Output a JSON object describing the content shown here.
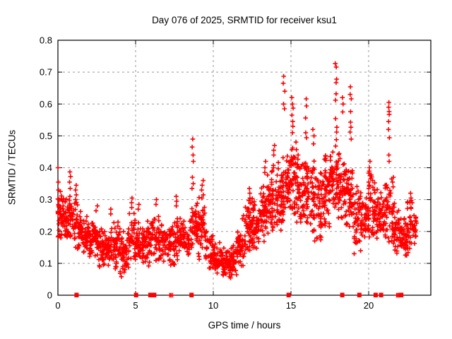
{
  "title": "Day 076 of 2025, SRMTID for receiver ksu1",
  "chart_data": {
    "type": "scatter",
    "title": "Day 076 of 2025, SRMTID for receiver ksu1",
    "xlabel": "GPS time / hours",
    "ylabel": "SRMTID / TECUs",
    "xlim": [
      0,
      24
    ],
    "ylim": [
      0,
      0.8
    ],
    "xticks": [
      {
        "v": 0,
        "label": "0"
      },
      {
        "v": 5,
        "label": "5"
      },
      {
        "v": 10,
        "label": "10"
      },
      {
        "v": 15,
        "label": "15"
      },
      {
        "v": 20,
        "label": "20"
      }
    ],
    "yticks": [
      {
        "v": 0.0,
        "label": "0"
      },
      {
        "v": 0.1,
        "label": "0.1"
      },
      {
        "v": 0.2,
        "label": "0.2"
      },
      {
        "v": 0.3,
        "label": "0.3"
      },
      {
        "v": 0.4,
        "label": "0.4"
      },
      {
        "v": 0.5,
        "label": "0.5"
      },
      {
        "v": 0.6,
        "label": "0.6"
      },
      {
        "v": 0.7,
        "label": "0.7"
      },
      {
        "v": 0.8,
        "label": "0.8"
      }
    ],
    "grid": true,
    "legend": "none",
    "marker": "plus",
    "marker_color": "#ff0000",
    "grid_color": "#999999",
    "axis_color": "#000000",
    "seed": 76,
    "band_envelope_comment": "dense scatter band per half-hour bin: [startHour, endHour, minTECU, maxTECU, pointCount]",
    "bands": [
      [
        0.0,
        0.5,
        0.17,
        0.33,
        55
      ],
      [
        0.5,
        1.0,
        0.17,
        0.31,
        50
      ],
      [
        1.0,
        1.5,
        0.13,
        0.3,
        48
      ],
      [
        1.5,
        2.0,
        0.12,
        0.26,
        46
      ],
      [
        2.0,
        2.5,
        0.1,
        0.24,
        46
      ],
      [
        2.5,
        3.0,
        0.07,
        0.22,
        46
      ],
      [
        3.0,
        3.5,
        0.08,
        0.22,
        46
      ],
      [
        3.5,
        4.0,
        0.07,
        0.24,
        46
      ],
      [
        4.0,
        4.5,
        0.05,
        0.22,
        46
      ],
      [
        4.5,
        5.0,
        0.08,
        0.26,
        46
      ],
      [
        5.0,
        5.5,
        0.06,
        0.24,
        44
      ],
      [
        5.5,
        6.0,
        0.08,
        0.24,
        42
      ],
      [
        6.0,
        6.5,
        0.09,
        0.26,
        42
      ],
      [
        6.5,
        7.0,
        0.1,
        0.25,
        42
      ],
      [
        7.0,
        7.5,
        0.08,
        0.24,
        44
      ],
      [
        7.5,
        8.0,
        0.1,
        0.26,
        42
      ],
      [
        8.0,
        8.5,
        0.1,
        0.24,
        42
      ],
      [
        8.5,
        9.0,
        0.12,
        0.3,
        46
      ],
      [
        9.0,
        9.5,
        0.1,
        0.32,
        46
      ],
      [
        9.5,
        10.0,
        0.08,
        0.22,
        42
      ],
      [
        10.0,
        10.5,
        0.05,
        0.18,
        46
      ],
      [
        10.5,
        11.0,
        0.05,
        0.16,
        46
      ],
      [
        11.0,
        11.5,
        0.04,
        0.17,
        46
      ],
      [
        11.5,
        12.0,
        0.08,
        0.22,
        46
      ],
      [
        12.0,
        12.5,
        0.12,
        0.3,
        50
      ],
      [
        12.5,
        13.0,
        0.13,
        0.32,
        50
      ],
      [
        13.0,
        13.5,
        0.15,
        0.37,
        50
      ],
      [
        13.5,
        14.0,
        0.18,
        0.42,
        50
      ],
      [
        14.0,
        14.5,
        0.18,
        0.42,
        50
      ],
      [
        14.5,
        15.0,
        0.22,
        0.46,
        54
      ],
      [
        15.0,
        15.5,
        0.22,
        0.5,
        54
      ],
      [
        15.5,
        16.0,
        0.2,
        0.45,
        50
      ],
      [
        16.0,
        16.5,
        0.18,
        0.45,
        50
      ],
      [
        16.5,
        17.0,
        0.15,
        0.42,
        50
      ],
      [
        17.0,
        17.5,
        0.2,
        0.45,
        50
      ],
      [
        17.5,
        18.0,
        0.25,
        0.48,
        50
      ],
      [
        18.0,
        18.5,
        0.22,
        0.45,
        50
      ],
      [
        18.5,
        19.0,
        0.2,
        0.42,
        50
      ],
      [
        19.0,
        19.5,
        0.12,
        0.35,
        46
      ],
      [
        19.5,
        20.0,
        0.15,
        0.32,
        44
      ],
      [
        20.0,
        20.5,
        0.17,
        0.4,
        44
      ],
      [
        20.5,
        21.0,
        0.15,
        0.35,
        44
      ],
      [
        21.0,
        21.5,
        0.15,
        0.38,
        40
      ],
      [
        21.5,
        22.0,
        0.12,
        0.3,
        46
      ],
      [
        22.0,
        22.5,
        0.12,
        0.25,
        56
      ],
      [
        22.5,
        23.1,
        0.13,
        0.32,
        46
      ]
    ],
    "spike_columns_comment": "distinct high-value marker columns: x hour, list of TECU values",
    "spikes": [
      {
        "x": 0.02,
        "ys": [
          0.4,
          0.355,
          0.33,
          0.3
        ]
      },
      {
        "x": 0.8,
        "ys": [
          0.387,
          0.372,
          0.355,
          0.335,
          0.31
        ]
      },
      {
        "x": 1.15,
        "ys": [
          0.345,
          0.33,
          0.315,
          0.3
        ]
      },
      {
        "x": 2.5,
        "ys": [
          0.28,
          0.265
        ]
      },
      {
        "x": 3.35,
        "ys": [
          0.27,
          0.255
        ]
      },
      {
        "x": 4.8,
        "ys": [
          0.305,
          0.29,
          0.275
        ]
      },
      {
        "x": 5.2,
        "ys": [
          0.285,
          0.27
        ]
      },
      {
        "x": 6.3,
        "ys": [
          0.3,
          0.285
        ]
      },
      {
        "x": 7.6,
        "ys": [
          0.31,
          0.295,
          0.28
        ]
      },
      {
        "x": 8.68,
        "ys": [
          0.49,
          0.465,
          0.44,
          0.42,
          0.37,
          0.35,
          0.335
        ]
      },
      {
        "x": 9.3,
        "ys": [
          0.36,
          0.345,
          0.33,
          0.315
        ]
      },
      {
        "x": 11.9,
        "ys": [
          0.25,
          0.24
        ]
      },
      {
        "x": 12.35,
        "ys": [
          0.335,
          0.32,
          0.305
        ]
      },
      {
        "x": 13.35,
        "ys": [
          0.42,
          0.4,
          0.385
        ]
      },
      {
        "x": 13.9,
        "ys": [
          0.47,
          0.455,
          0.44
        ]
      },
      {
        "x": 14.55,
        "ys": [
          0.687,
          0.665,
          0.64,
          0.6,
          0.585
        ]
      },
      {
        "x": 15.1,
        "ys": [
          0.62,
          0.6,
          0.587,
          0.565,
          0.545,
          0.53,
          0.51
        ]
      },
      {
        "x": 15.98,
        "ys": [
          0.616,
          0.594,
          0.556,
          0.51,
          0.494
        ]
      },
      {
        "x": 16.45,
        "ys": [
          0.52,
          0.5,
          0.475
        ]
      },
      {
        "x": 17.9,
        "ys": [
          0.727,
          0.716,
          0.678,
          0.667,
          0.632,
          0.612,
          0.554,
          0.527,
          0.512,
          0.488
        ]
      },
      {
        "x": 18.3,
        "ys": [
          0.62,
          0.6,
          0.575
        ]
      },
      {
        "x": 18.85,
        "ys": [
          0.654,
          0.63,
          0.616,
          0.576,
          0.543,
          0.527,
          0.512,
          0.49
        ]
      },
      {
        "x": 20.05,
        "ys": [
          0.42,
          0.4,
          0.375,
          0.355,
          0.335
        ]
      },
      {
        "x": 21.3,
        "ys": [
          0.605,
          0.59,
          0.576,
          0.567,
          0.545,
          0.52,
          0.494,
          0.44,
          0.42
        ]
      },
      {
        "x": 21.55,
        "ys": [
          0.37,
          0.355,
          0.34
        ]
      },
      {
        "x": 22.7,
        "ys": [
          0.32,
          0.305,
          0.29
        ]
      }
    ],
    "zero_markers_comment": "red markers sitting on the y=0 axis line",
    "zero_squares": [
      1.2,
      5.03,
      5.95,
      6.07,
      6.2,
      8.6,
      14.85,
      18.3,
      19.4,
      20.45,
      20.8,
      22.1
    ],
    "zero_pluses": [
      7.2,
      7.28,
      7.38,
      21.8,
      21.88,
      21.96
    ]
  }
}
